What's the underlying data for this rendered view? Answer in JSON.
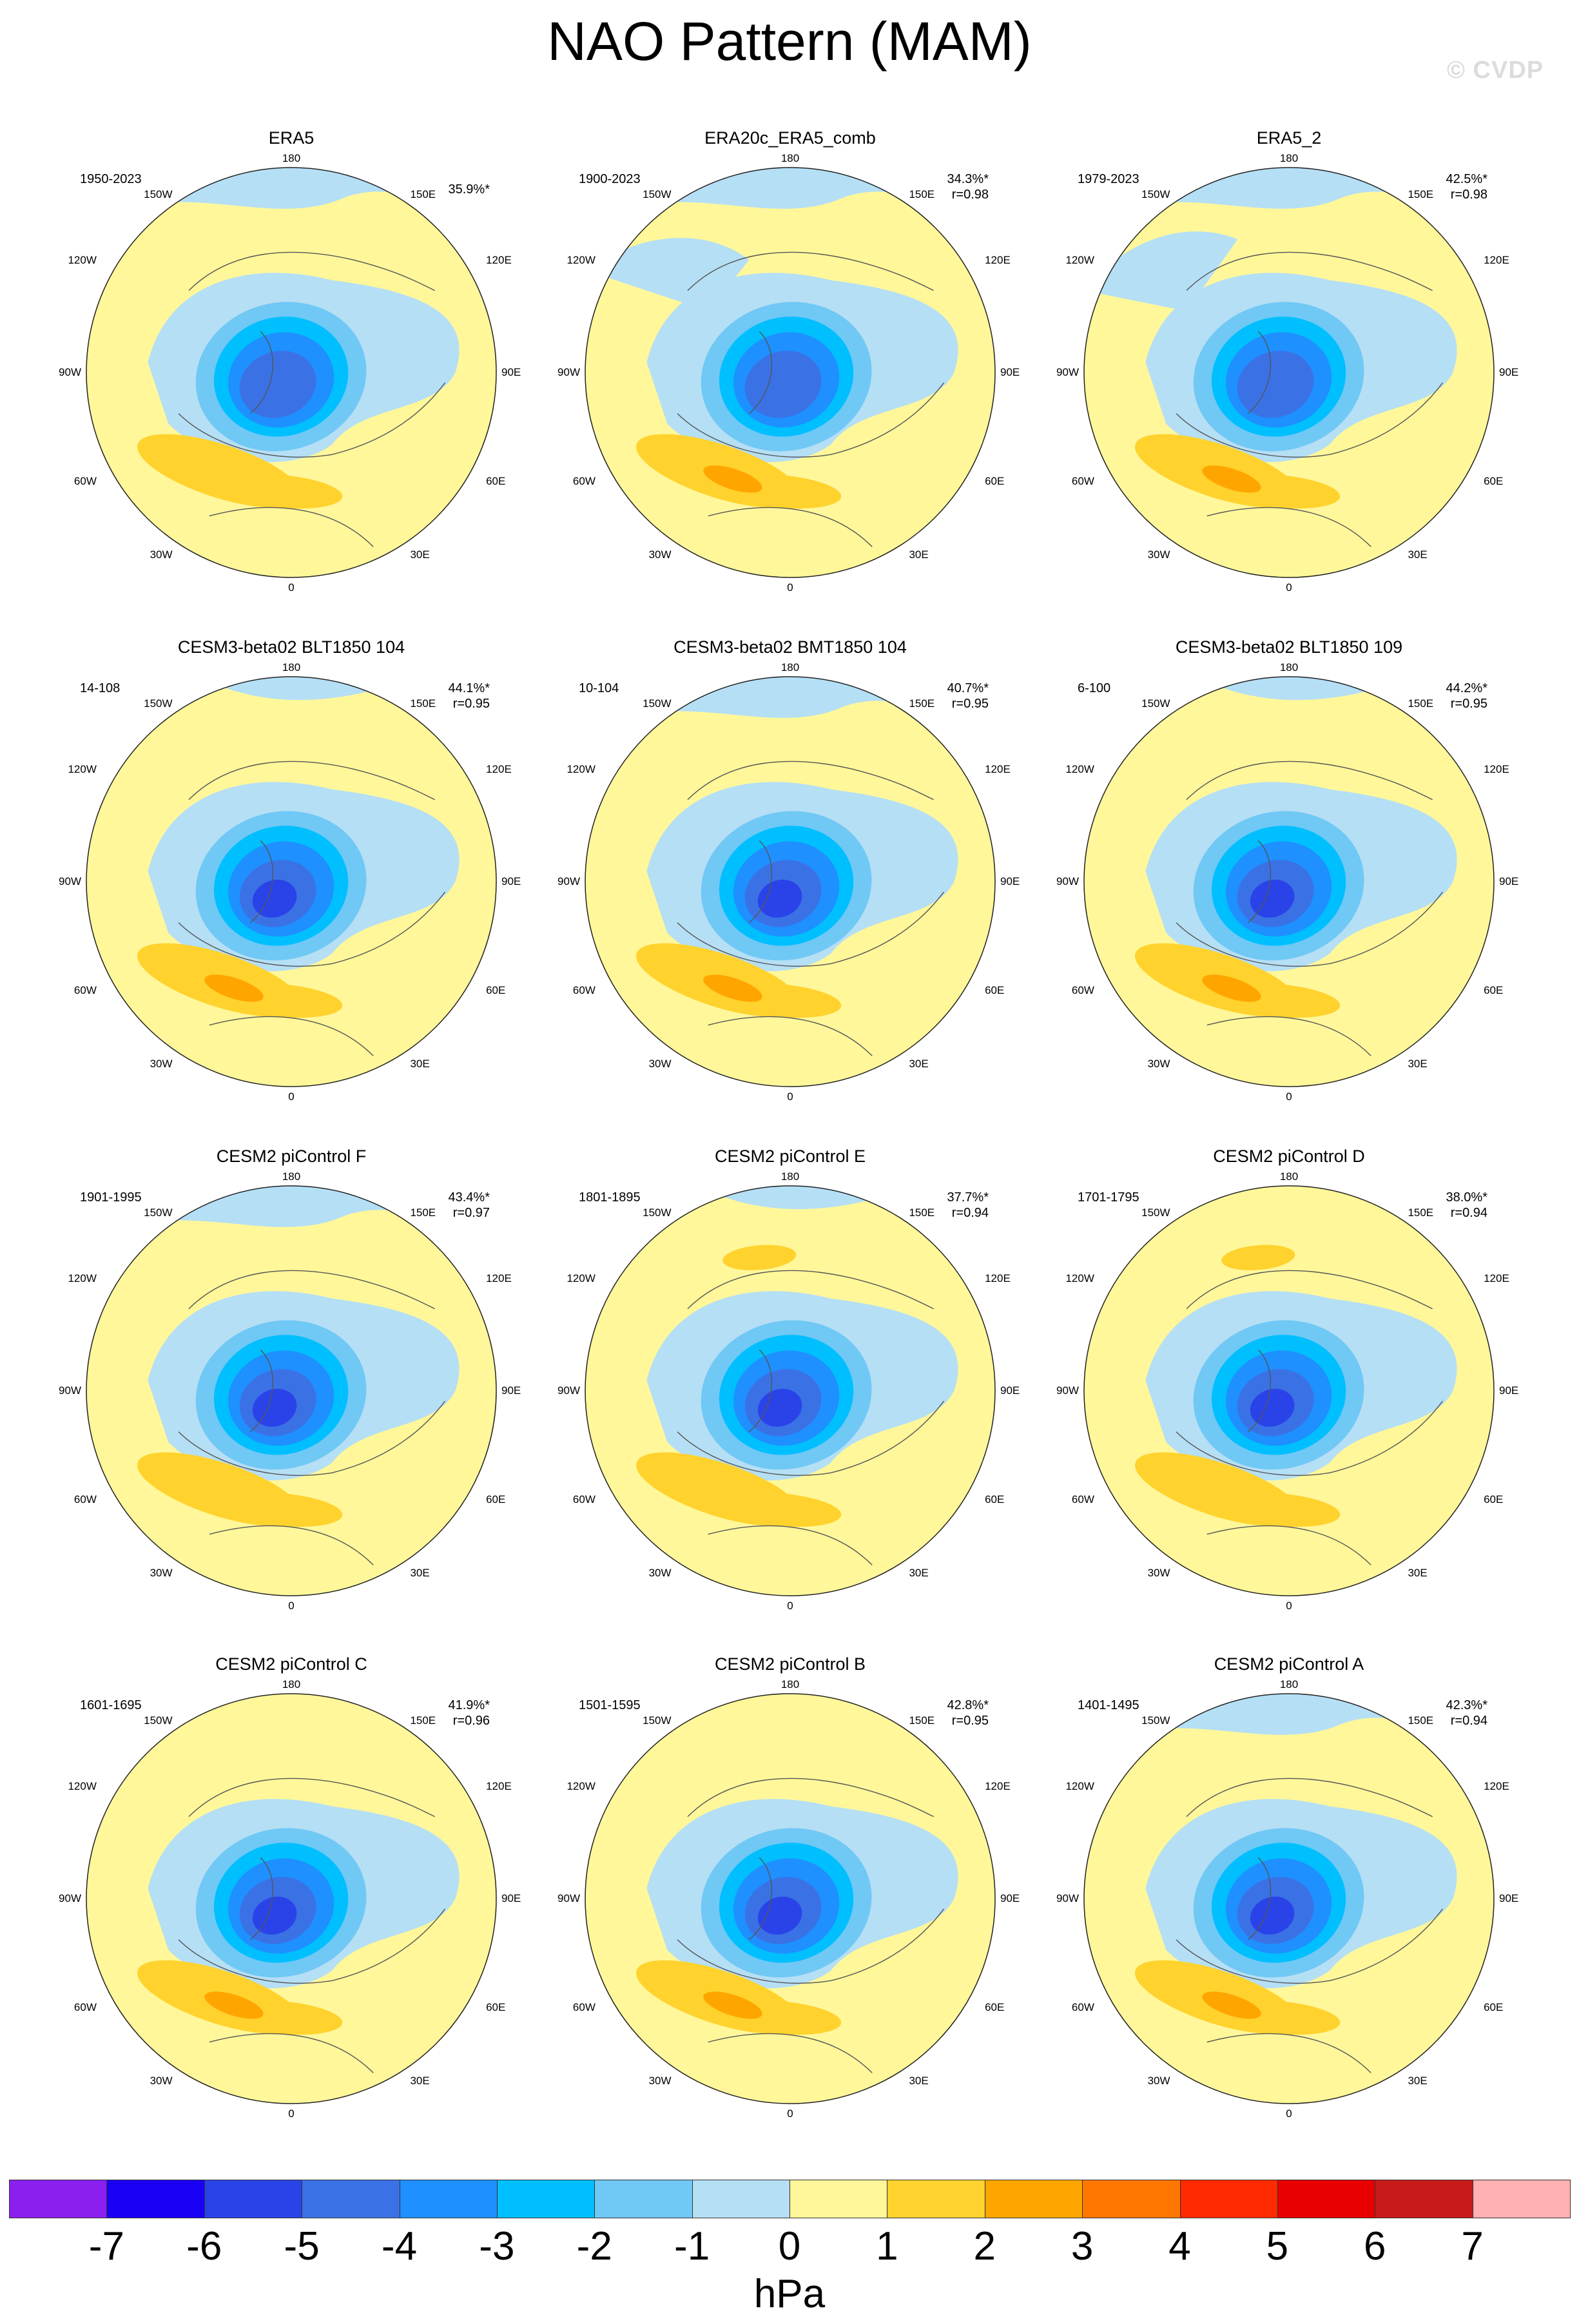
{
  "title": "NAO Pattern (MAM)",
  "watermark": "© CVDP",
  "lon_labels": {
    "top": "180",
    "bottom": "0",
    "tl1": "150W",
    "tr1": "150E",
    "tl2": "120W",
    "tr2": "120E",
    "left": "90W",
    "right": "90E",
    "bl1": "60W",
    "br1": "60E",
    "bl2": "30W",
    "br2": "30E"
  },
  "panels": [
    {
      "title": "ERA5",
      "years": "1950-2023",
      "pct": "35.9%*",
      "r": ""
    },
    {
      "title": "ERA20c_ERA5_comb",
      "years": "1900-2023",
      "pct": "34.3%*",
      "r": "r=0.98"
    },
    {
      "title": "ERA5_2",
      "years": "1979-2023",
      "pct": "42.5%*",
      "r": "r=0.98"
    },
    {
      "title": "CESM3-beta02 BLT1850 104",
      "years": "14-108",
      "pct": "44.1%*",
      "r": "r=0.95"
    },
    {
      "title": "CESM3-beta02 BMT1850 104",
      "years": "10-104",
      "pct": "40.7%*",
      "r": "r=0.95"
    },
    {
      "title": "CESM3-beta02 BLT1850 109",
      "years": "6-100",
      "pct": "44.2%*",
      "r": "r=0.95"
    },
    {
      "title": "CESM2 piControl F",
      "years": "1901-1995",
      "pct": "43.4%*",
      "r": "r=0.97"
    },
    {
      "title": "CESM2 piControl E",
      "years": "1801-1895",
      "pct": "37.7%*",
      "r": "r=0.94"
    },
    {
      "title": "CESM2 piControl D",
      "years": "1701-1795",
      "pct": "38.0%*",
      "r": "r=0.94"
    },
    {
      "title": "CESM2 piControl C",
      "years": "1601-1695",
      "pct": "41.9%*",
      "r": "r=0.96"
    },
    {
      "title": "CESM2 piControl B",
      "years": "1501-1595",
      "pct": "42.8%*",
      "r": "r=0.95"
    },
    {
      "title": "CESM2 piControl A",
      "years": "1401-1495",
      "pct": "42.3%*",
      "r": "r=0.94"
    }
  ],
  "colorbar": {
    "unit": "hPa",
    "labels": [
      "-7",
      "-6",
      "-5",
      "-4",
      "-3",
      "-2",
      "-1",
      "0",
      "1",
      "2",
      "3",
      "4",
      "5",
      "6",
      "7"
    ],
    "colors": [
      "#8b1ff0",
      "#1a00f5",
      "#2a43e8",
      "#3a72e6",
      "#1e90ff",
      "#00bfff",
      "#70c8f5",
      "#b5dff5",
      "#fff79a",
      "#ffd22d",
      "#ffa500",
      "#ff7700",
      "#ff2a00",
      "#e80000",
      "#c81a1a",
      "#ffb0b0"
    ]
  },
  "map_colors": {
    "background": "#fff79a",
    "neg1": "#b5dff5",
    "neg2": "#70c8f5",
    "neg3": "#00bfff",
    "neg4": "#1e90ff",
    "neg5": "#3a72e6",
    "neg6": "#2a43e8",
    "pos1": "#ffd22d",
    "pos2": "#ffa500"
  }
}
